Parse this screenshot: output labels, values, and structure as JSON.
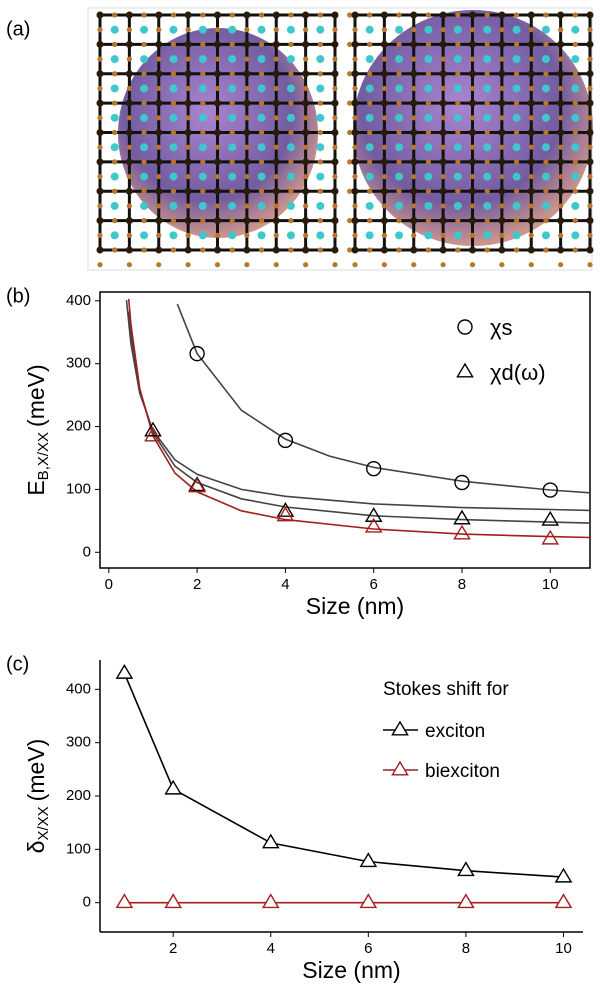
{
  "panel_a": {
    "label": "(a)"
  },
  "chart_data": [
    {
      "type": "scatter",
      "panel_label": "(b)",
      "xlabel": "Size (nm)",
      "ylabel": [
        "E",
        "B,X/XX",
        "(meV)"
      ],
      "xlim": [
        -0.2,
        10.9
      ],
      "ylim": [
        -25,
        414
      ],
      "xticks": [
        0,
        2,
        4,
        6,
        8,
        10
      ],
      "yticks": [
        0,
        100,
        200,
        300,
        400
      ],
      "frame": true,
      "legend": "upper right",
      "series": [
        {
          "name": "χs",
          "marker": "circle",
          "color": "#000000",
          "x": [
            2,
            4,
            6,
            8,
            10
          ],
          "values": [
            316,
            178,
            133,
            111,
            99
          ]
        },
        {
          "name": "χd(ω)",
          "marker": "triangle",
          "color": "#000000",
          "x": [
            1,
            2,
            4,
            6,
            8,
            10
          ],
          "values": [
            193,
            106,
            65,
            57,
            53,
            51
          ]
        },
        {
          "marker": "triangle",
          "color": "#a31f1f",
          "x": [
            1,
            2,
            4,
            6,
            8,
            10
          ],
          "values": [
            185,
            104,
            58,
            40,
            29,
            21
          ]
        }
      ],
      "curves": [
        {
          "color": "#444444",
          "x": [
            1.55,
            2,
            3,
            4,
            5,
            6,
            8,
            10,
            11.2
          ],
          "values": [
            395,
            316,
            226,
            180,
            153,
            135,
            113,
            99,
            93
          ]
        },
        {
          "color": "#444444",
          "x": [
            0.4,
            0.5,
            0.7,
            1,
            1.5,
            2,
            3,
            4,
            6,
            8,
            10,
            11.2
          ],
          "values": [
            401,
            332,
            253,
            193,
            147,
            124,
            100,
            89,
            77,
            71,
            68,
            66
          ]
        },
        {
          "color": "#444444",
          "x": [
            0.45,
            0.5,
            0.7,
            1,
            1.5,
            2,
            3,
            4,
            6,
            8,
            10,
            11.2
          ],
          "values": [
            383,
            348,
            258,
            190,
            137,
            111,
            85,
            72,
            58,
            52,
            48,
            46
          ]
        },
        {
          "color": "#a31f1f",
          "x": [
            0.45,
            0.5,
            0.7,
            1,
            1.5,
            2,
            3,
            4,
            6,
            8,
            10,
            11.2
          ],
          "values": [
            403,
            363,
            261,
            185,
            126,
            96,
            66,
            52,
            37,
            29,
            25,
            23
          ]
        }
      ]
    },
    {
      "type": "line",
      "panel_label": "(c)",
      "xlabel": "Size (nm)",
      "ylabel": [
        "δ",
        "X/XX",
        "(meV)"
      ],
      "xlim": [
        0.5,
        10.4
      ],
      "ylim": [
        -55,
        455
      ],
      "xticks": [
        2,
        4,
        6,
        8,
        10
      ],
      "yticks": [
        0,
        100,
        200,
        300,
        400
      ],
      "frame": false,
      "legend": "upper right",
      "legend_title": "Stokes shift for",
      "series": [
        {
          "name": "exciton",
          "marker": "triangle",
          "color": "#000000",
          "x": [
            1,
            2,
            4,
            6,
            8,
            10
          ],
          "values": [
            430,
            213,
            112,
            77,
            60,
            48
          ]
        },
        {
          "name": "biexciton",
          "marker": "triangle",
          "color": "#a31f1f",
          "x": [
            1,
            2,
            4,
            6,
            8,
            10
          ],
          "values": [
            0,
            0,
            0,
            0,
            0,
            0
          ]
        }
      ]
    }
  ]
}
